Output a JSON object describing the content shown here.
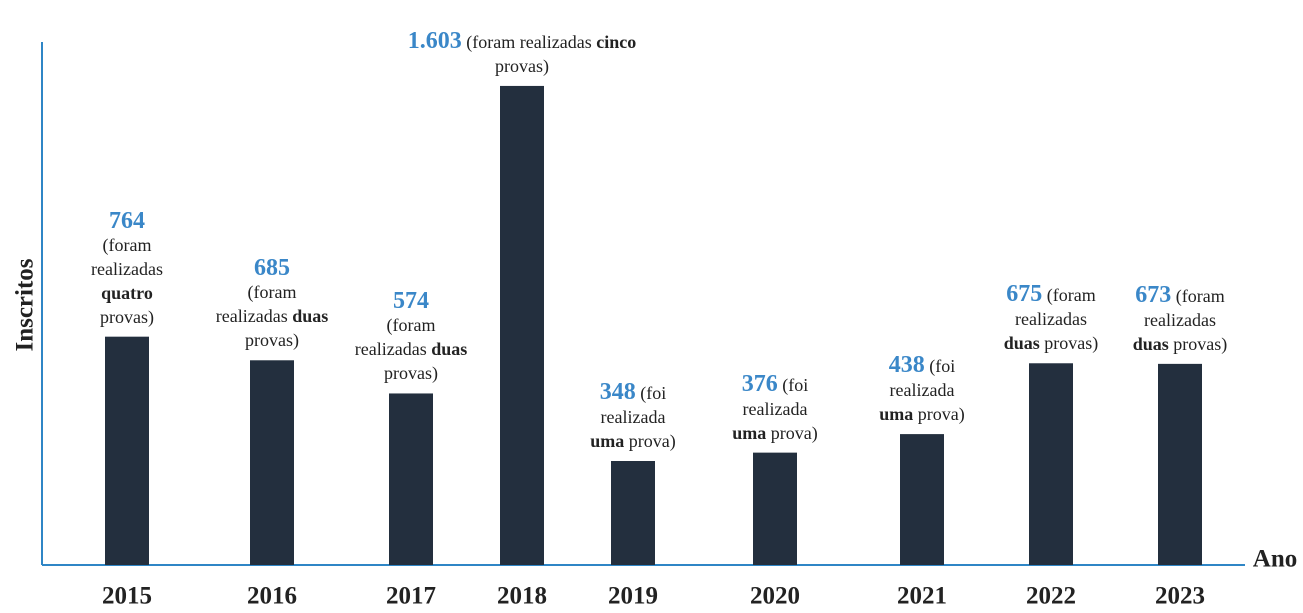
{
  "chart_data": {
    "type": "bar",
    "x_label": "Ano",
    "y_label": "Inscritos",
    "categories": [
      "2015",
      "2016",
      "2017",
      "2018",
      "2019",
      "2020",
      "2021",
      "2022",
      "2023"
    ],
    "values": [
      764,
      685,
      574,
      1603,
      348,
      376,
      438,
      675,
      673
    ],
    "value_labels": [
      "764",
      "685",
      "574",
      "1.603",
      "348",
      "376",
      "438",
      "675",
      "673"
    ],
    "annotations": [
      [
        "(foram realizadas ",
        "quatro",
        " provas)"
      ],
      [
        "(foram realizadas ",
        "duas",
        " provas)"
      ],
      [
        "(foram realizadas ",
        "duas",
        " provas)"
      ],
      [
        "(foram realizadas ",
        "cinco",
        " provas)"
      ],
      [
        "(foi realizada ",
        "uma",
        " prova)"
      ],
      [
        "(foi realizada ",
        "uma",
        " prova)"
      ],
      [
        "(foi realizada ",
        "uma",
        " prova)"
      ],
      [
        "(foram realizadas ",
        "duas",
        " provas)"
      ],
      [
        "(foram realizadas ",
        "duas",
        " provas)"
      ]
    ],
    "color": "#232f3e",
    "label_color": "#3a87c8",
    "axis_color": "#2f86c6",
    "ylim": [
      0,
      1750
    ]
  }
}
